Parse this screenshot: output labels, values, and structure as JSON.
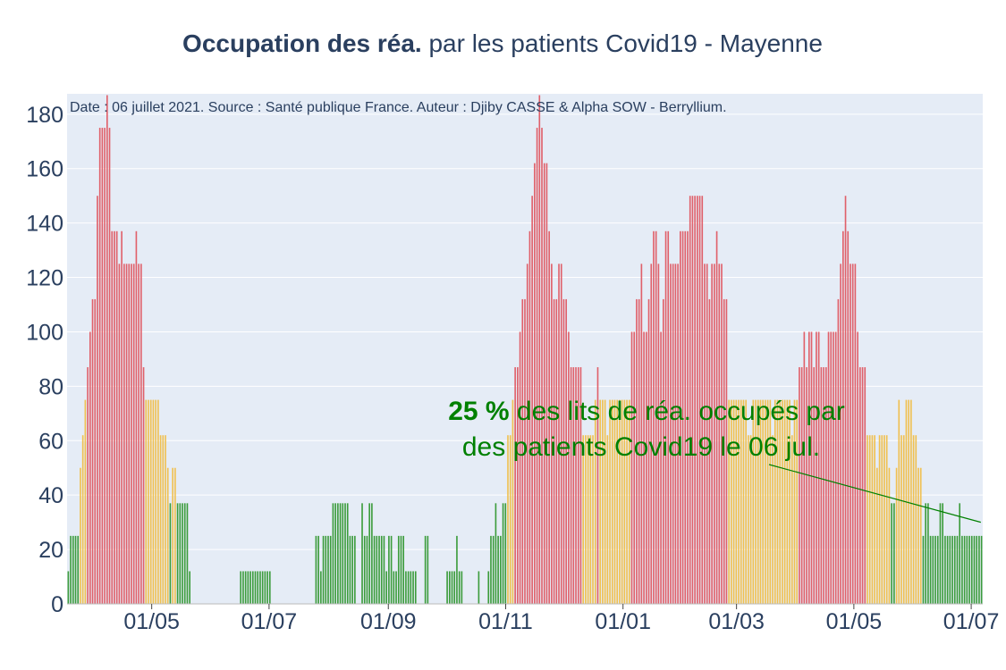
{
  "chart_data": {
    "type": "bar",
    "title_bold": "Occupation des réa.",
    "title_rest": " par les patients Covid19 - Mayenne",
    "source_note": "Date : 06 juillet 2021. Source : Santé publique France. Auteur : Djiby CASSE & Alpha SOW - Berryllium.",
    "annotation": {
      "percent": "25",
      "percent_sign": " %",
      "line1_rest": " des lits de réa. occupés par",
      "line2": "des patients Covid19 le 06 jul.",
      "arrow_to": [
        "2021-07-06",
        30
      ]
    },
    "xlabel": "",
    "ylabel": "",
    "x_range": [
      "2020-03-18",
      "2021-07-07"
    ],
    "ylim": [
      0,
      187.5
    ],
    "y_ticks": [
      0,
      20,
      40,
      60,
      80,
      100,
      120,
      140,
      160,
      180
    ],
    "x_ticks": [
      {
        "date": "2020-05-01",
        "label": "01/05"
      },
      {
        "date": "2020-07-01",
        "label": "01/07"
      },
      {
        "date": "2020-09-01",
        "label": "01/09"
      },
      {
        "date": "2020-11-01",
        "label": "01/11"
      },
      {
        "date": "2021-01-01",
        "label": "01/01"
      },
      {
        "date": "2021-03-01",
        "label": "01/03"
      },
      {
        "date": "2021-05-01",
        "label": "01/05"
      },
      {
        "date": "2021-07-01",
        "label": "01/07"
      }
    ],
    "unit": "% des lits de réa. occupés",
    "color_thresholds": {
      "green_below": 40,
      "orange_below": 80
    },
    "colors": {
      "green": "#3c9c3c",
      "orange": "#f0c050",
      "red": "#e0606a",
      "plot_bg": "#e5ecf6",
      "grid": "#ffffff",
      "text": "#2a3f5f",
      "annotation": "#008000"
    },
    "grid": true,
    "series": [
      {
        "values": [
          12,
          25,
          25,
          25,
          25,
          50,
          62,
          75,
          87,
          100,
          112,
          112,
          150,
          175,
          175,
          175,
          187,
          175,
          137,
          137,
          137,
          125,
          137,
          125,
          125,
          125,
          125,
          125,
          137,
          125,
          125,
          87,
          75,
          75,
          75,
          75,
          75,
          75,
          62,
          62,
          62,
          50,
          37,
          50,
          50,
          37,
          37,
          37,
          37,
          37,
          12,
          0,
          0,
          0,
          0,
          0,
          0,
          0,
          0,
          0,
          0,
          0,
          0,
          0,
          0,
          0,
          0,
          0,
          0,
          0,
          0,
          12,
          12,
          12,
          12,
          12,
          12,
          12,
          12,
          12,
          12,
          12,
          12,
          12,
          0,
          0,
          0,
          0,
          0,
          0,
          0,
          0,
          0,
          0,
          0,
          0,
          0,
          0,
          0,
          0,
          0,
          0,
          25,
          25,
          12,
          25,
          25,
          25,
          25,
          37,
          37,
          37,
          37,
          37,
          37,
          37,
          25,
          25,
          25,
          0,
          0,
          37,
          25,
          25,
          37,
          37,
          25,
          25,
          25,
          25,
          25,
          12,
          25,
          25,
          12,
          12,
          25,
          25,
          25,
          12,
          12,
          12,
          12,
          12,
          0,
          0,
          0,
          25,
          25,
          0,
          0,
          0,
          0,
          0,
          0,
          0,
          12,
          12,
          12,
          12,
          25,
          12,
          12,
          0,
          0,
          0,
          0,
          0,
          0,
          12,
          0,
          0,
          0,
          12,
          25,
          25,
          37,
          25,
          25,
          37,
          37,
          62,
          62,
          75,
          87,
          87,
          100,
          112,
          112,
          125,
          137,
          150,
          162,
          175,
          187,
          175,
          162,
          162,
          137,
          125,
          112,
          112,
          125,
          125,
          112,
          112,
          100,
          87,
          87,
          87,
          87,
          87,
          62,
          62,
          62,
          62,
          62,
          75,
          87,
          75,
          75,
          75,
          62,
          75,
          75,
          75,
          75,
          75,
          75,
          75,
          75,
          75,
          100,
          100,
          112,
          112,
          125,
          100,
          100,
          112,
          125,
          137,
          137,
          125,
          100,
          112,
          137,
          137,
          125,
          125,
          125,
          125,
          137,
          137,
          137,
          137,
          150,
          150,
          150,
          150,
          150,
          150,
          125,
          125,
          112,
          125,
          125,
          137,
          125,
          125,
          112,
          112,
          75,
          75,
          75,
          75,
          75,
          75,
          75,
          75,
          62,
          62,
          75,
          75,
          75,
          75,
          75,
          75,
          75,
          75,
          62,
          75,
          75,
          75,
          75,
          75,
          75,
          75,
          62,
          75,
          75,
          87,
          87,
          100,
          87,
          100,
          100,
          87,
          100,
          100,
          87,
          87,
          87,
          100,
          100,
          100,
          100,
          112,
          125,
          137,
          150,
          137,
          125,
          125,
          125,
          100,
          87,
          87,
          87,
          62,
          62,
          62,
          62,
          50,
          62,
          62,
          62,
          62,
          50,
          37,
          37,
          50,
          75,
          62,
          62,
          75,
          75,
          75,
          62,
          62,
          50,
          50,
          25,
          37,
          37,
          25,
          25,
          25,
          25,
          37,
          37,
          25,
          25,
          25,
          25,
          25,
          25,
          37,
          25,
          25,
          25,
          25,
          25,
          25,
          25,
          25,
          25
        ]
      }
    ]
  }
}
